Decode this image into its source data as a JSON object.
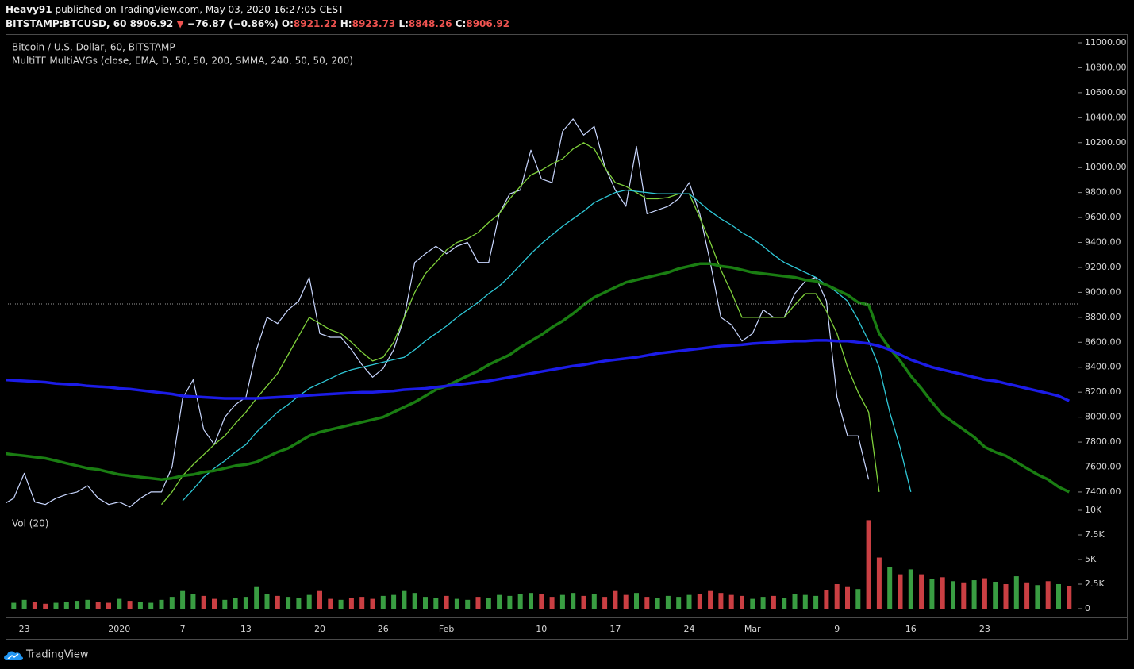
{
  "header": {
    "author": "Heavy91",
    "published": "published on TradingView.com, May 03, 2020 16:27:05 CEST",
    "symbol": "BITSTAMP:BTCUSD, 60",
    "last": 8906.92,
    "arrow": "▼",
    "change": "−76.87 (−0.86%)",
    "open_label": "O:",
    "open": 8921.22,
    "high_label": "H:",
    "high": 8923.73,
    "low_label": "L:",
    "low": 8848.26,
    "close_label": "C:",
    "close": 8906.92
  },
  "footer": {
    "brand": "TradingView"
  },
  "chart_data": [
    {
      "type": "line",
      "title": "Bitcoin / U.S. Dollar, 60, BITSTAMP",
      "subtitle": "MultiTF MultiAVGs (close, EMA, D, 50, 50, 200, SMMA, 240, 50, 50, 200)",
      "categories": [
        null,
        null,
        "23",
        null,
        null,
        null,
        null,
        null,
        null,
        null,
        null,
        "2020",
        null,
        null,
        null,
        null,
        null,
        "7",
        null,
        null,
        null,
        null,
        null,
        "13",
        null,
        null,
        null,
        null,
        null,
        null,
        "20",
        null,
        null,
        null,
        null,
        null,
        "26",
        null,
        null,
        null,
        null,
        null,
        "Feb",
        null,
        null,
        null,
        null,
        null,
        null,
        null,
        null,
        "10",
        null,
        null,
        null,
        null,
        null,
        null,
        "17",
        null,
        null,
        null,
        null,
        null,
        null,
        "24",
        null,
        null,
        null,
        null,
        null,
        "Mar",
        null,
        null,
        null,
        null,
        null,
        null,
        null,
        "9",
        null,
        null,
        null,
        null,
        null,
        null,
        "16",
        null,
        null,
        null,
        null,
        null,
        null,
        "23",
        null,
        null,
        null,
        null,
        null,
        null,
        null,
        null
      ],
      "ylim": [
        7266,
        11070
      ],
      "yticks": [
        {
          "value": 7400,
          "label": "7400.00"
        },
        {
          "value": 7600,
          "label": "7600.00"
        },
        {
          "value": 7800,
          "label": "7800.00"
        },
        {
          "value": 8000,
          "label": "8000.00"
        },
        {
          "value": 8200,
          "label": "8200.00"
        },
        {
          "value": 8400,
          "label": "8400.00"
        },
        {
          "value": 8600,
          "label": "8600.00"
        },
        {
          "value": 8800,
          "label": "8800.00"
        },
        {
          "value": 9000,
          "label": "9000.00"
        },
        {
          "value": 9200,
          "label": "9200.00"
        },
        {
          "value": 9400,
          "label": "9400.00"
        },
        {
          "value": 9600,
          "label": "9600.00"
        },
        {
          "value": 9800,
          "label": "9800.00"
        },
        {
          "value": 10000,
          "label": "10000.00"
        },
        {
          "value": 10200,
          "label": "10200.00"
        },
        {
          "value": 10400,
          "label": "10400.00"
        },
        {
          "value": 10600,
          "label": "10600.00"
        },
        {
          "value": 10800,
          "label": "10800.00"
        },
        {
          "value": 11000,
          "label": "11000.00"
        }
      ],
      "grid": false,
      "series": [
        {
          "color": "#c9d7ff",
          "width": 1.2,
          "values": [
            7300,
            7350,
            7550,
            7320,
            7300,
            7350,
            7380,
            7400,
            7450,
            7350,
            7300,
            7320,
            7280,
            7350,
            7400,
            7400,
            7600,
            8150,
            8300,
            7900,
            7780,
            8000,
            8100,
            8160,
            8540,
            8800,
            8750,
            8860,
            8930,
            9120,
            8670,
            8640,
            8640,
            8540,
            8420,
            8320,
            8390,
            8540,
            8800,
            9240,
            9310,
            9370,
            9310,
            9370,
            9400,
            9240,
            9240,
            9630,
            9790,
            9820,
            10140,
            9910,
            9880,
            10290,
            10390,
            10260,
            10330,
            10010,
            9820,
            9690,
            10170,
            9630,
            9660,
            9690,
            9750,
            9880,
            9630,
            9240,
            8800,
            8740,
            8610,
            8670,
            8860,
            8800,
            8800,
            8990,
            9090,
            9120,
            8930,
            8160,
            7850,
            7850,
            7500,
            null,
            null,
            null,
            null,
            null,
            null,
            null,
            null,
            null,
            null,
            null,
            null,
            null,
            null,
            null,
            null,
            null,
            null,
            null
          ]
        },
        {
          "color": "#7fd13b",
          "width": 1.3,
          "values": [
            null,
            null,
            null,
            null,
            null,
            null,
            null,
            null,
            null,
            null,
            null,
            null,
            null,
            null,
            null,
            7300,
            7400,
            7530,
            7620,
            7700,
            7780,
            7850,
            7950,
            8040,
            8150,
            8250,
            8350,
            8500,
            8650,
            8800,
            8750,
            8700,
            8670,
            8600,
            8520,
            8450,
            8480,
            8600,
            8800,
            9000,
            9150,
            9240,
            9340,
            9400,
            9430,
            9480,
            9560,
            9630,
            9750,
            9850,
            9940,
            9980,
            10030,
            10070,
            10150,
            10200,
            10150,
            10000,
            9880,
            9850,
            9800,
            9750,
            9750,
            9760,
            9790,
            9790,
            9600,
            9400,
            9180,
            9000,
            8800,
            8800,
            8800,
            8800,
            8800,
            8900,
            8990,
            8990,
            8850,
            8670,
            8400,
            8200,
            8040,
            7400,
            null,
            null,
            null,
            null,
            null,
            null,
            null,
            null,
            null,
            null,
            null,
            null,
            null,
            null,
            null,
            null,
            null,
            null
          ]
        },
        {
          "color": "#2ec7d6",
          "width": 1.3,
          "values": [
            null,
            null,
            null,
            null,
            null,
            null,
            null,
            null,
            null,
            null,
            null,
            null,
            null,
            null,
            null,
            null,
            null,
            7330,
            7420,
            7520,
            7590,
            7650,
            7720,
            7780,
            7880,
            7960,
            8040,
            8100,
            8170,
            8230,
            8270,
            8310,
            8350,
            8380,
            8400,
            8420,
            8440,
            8460,
            8480,
            8540,
            8610,
            8670,
            8730,
            8800,
            8860,
            8920,
            8990,
            9050,
            9130,
            9220,
            9310,
            9390,
            9460,
            9530,
            9590,
            9650,
            9720,
            9760,
            9800,
            9820,
            9810,
            9800,
            9790,
            9790,
            9790,
            9790,
            9720,
            9650,
            9590,
            9540,
            9480,
            9430,
            9370,
            9300,
            9240,
            9200,
            9160,
            9120,
            9060,
            9000,
            8930,
            8780,
            8610,
            8400,
            8040,
            7750,
            7400,
            null,
            null,
            null,
            null,
            null,
            null,
            null,
            null,
            null,
            null,
            null,
            null,
            null,
            null,
            null
          ]
        },
        {
          "color": "#1a7d12",
          "width": 3.5,
          "values": [
            7710,
            7700,
            7690,
            7680,
            7670,
            7650,
            7630,
            7610,
            7590,
            7580,
            7560,
            7540,
            7530,
            7520,
            7510,
            7500,
            7510,
            7530,
            7540,
            7560,
            7570,
            7590,
            7610,
            7620,
            7640,
            7680,
            7720,
            7750,
            7800,
            7850,
            7880,
            7900,
            7920,
            7940,
            7960,
            7980,
            8000,
            8040,
            8080,
            8120,
            8170,
            8220,
            8250,
            8290,
            8330,
            8370,
            8420,
            8460,
            8500,
            8560,
            8610,
            8660,
            8720,
            8770,
            8830,
            8900,
            8960,
            9000,
            9040,
            9080,
            9100,
            9120,
            9140,
            9160,
            9190,
            9210,
            9230,
            9230,
            9210,
            9200,
            9180,
            9160,
            9150,
            9140,
            9130,
            9120,
            9100,
            9090,
            9060,
            9020,
            8980,
            8920,
            8900,
            8670,
            8550,
            8450,
            8330,
            8230,
            8120,
            8020,
            7960,
            7900,
            7840,
            7760,
            7720,
            7690,
            7640,
            7590,
            7540,
            7500,
            7440,
            7400
          ]
        },
        {
          "color": "#1c1ce8",
          "width": 3.5,
          "values": [
            8300,
            8295,
            8290,
            8285,
            8280,
            8270,
            8265,
            8260,
            8250,
            8245,
            8240,
            8230,
            8225,
            8215,
            8205,
            8195,
            8185,
            8170,
            8165,
            8160,
            8155,
            8150,
            8150,
            8150,
            8150,
            8155,
            8160,
            8165,
            8170,
            8175,
            8180,
            8185,
            8190,
            8195,
            8200,
            8200,
            8205,
            8210,
            8220,
            8225,
            8230,
            8240,
            8250,
            8260,
            8270,
            8280,
            8290,
            8305,
            8320,
            8335,
            8350,
            8365,
            8380,
            8395,
            8410,
            8420,
            8435,
            8450,
            8460,
            8470,
            8480,
            8495,
            8510,
            8520,
            8530,
            8540,
            8550,
            8560,
            8570,
            8575,
            8580,
            8590,
            8595,
            8600,
            8605,
            8610,
            8610,
            8615,
            8615,
            8610,
            8610,
            8600,
            8590,
            8570,
            8540,
            8500,
            8460,
            8430,
            8400,
            8380,
            8360,
            8340,
            8320,
            8300,
            8290,
            8270,
            8250,
            8230,
            8210,
            8190,
            8170,
            8130
          ]
        }
      ]
    },
    {
      "type": "bar",
      "title": "Vol (20)",
      "up_color": "#3fae49",
      "down_color": "#e0464a",
      "ylim": [
        -887,
        9839
      ],
      "yticks": [
        0,
        {
          "value": 2500,
          "label": "2.5K"
        },
        {
          "value": 5000,
          "label": "5K"
        },
        {
          "value": 7500,
          "label": "7.5K"
        },
        {
          "value": 10000,
          "label": "10K"
        }
      ],
      "values": [
        800,
        600,
        900,
        700,
        500,
        600,
        700,
        800,
        900,
        700,
        600,
        1000,
        800,
        700,
        600,
        900,
        1200,
        1800,
        1500,
        1300,
        1000,
        900,
        1100,
        1200,
        2200,
        1500,
        1300,
        1200,
        1100,
        1400,
        1800,
        1000,
        900,
        1100,
        1200,
        1000,
        1300,
        1400,
        1800,
        1600,
        1200,
        1100,
        1300,
        1000,
        900,
        1200,
        1100,
        1400,
        1300,
        1500,
        1600,
        1500,
        1200,
        1400,
        1600,
        1300,
        1500,
        1200,
        1800,
        1400,
        1600,
        1200,
        1100,
        1300,
        1200,
        1400,
        1500,
        1800,
        1600,
        1400,
        1300,
        1000,
        1200,
        1300,
        1100,
        1500,
        1400,
        1300,
        1900,
        2500,
        2200,
        2000,
        9000,
        5200,
        4200,
        3500,
        4000,
        3500,
        3000,
        3200,
        2800,
        2600,
        2900,
        3100,
        2700,
        2500,
        3300,
        2600,
        2400,
        2800,
        2500,
        2300
      ]
    }
  ]
}
